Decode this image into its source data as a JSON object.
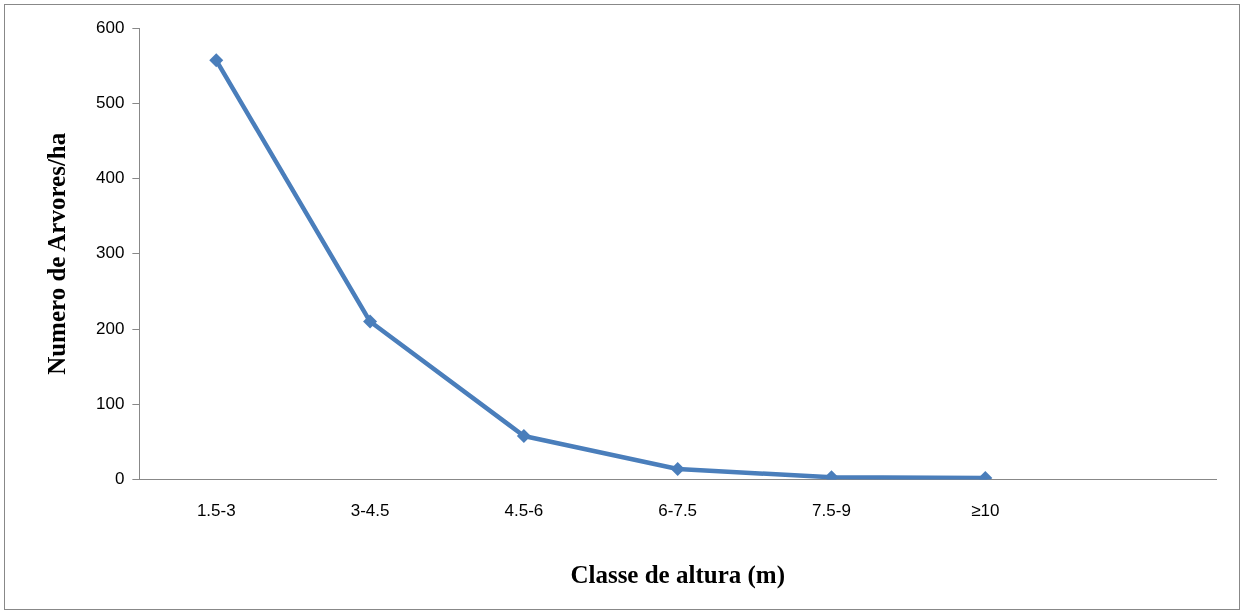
{
  "chart_data": {
    "type": "line",
    "xlabel": "Classe de altura (m)",
    "ylabel": "Numero de Arvores/ha",
    "categories": [
      "1.5-3",
      "3-4.5",
      "4.5-6",
      "6-7.5",
      "7.5-9",
      "≥10",
      null
    ],
    "series": [
      {
        "color": "#4a7ebb",
        "values": [
          557,
          210,
          58,
          14,
          3,
          2,
          null
        ]
      }
    ],
    "ylim": [
      0,
      600
    ],
    "yticks": [
      0,
      100,
      200,
      300,
      400,
      500,
      600
    ],
    "grid": false,
    "legend": false,
    "marker": "diamond",
    "line_style": "solid"
  }
}
